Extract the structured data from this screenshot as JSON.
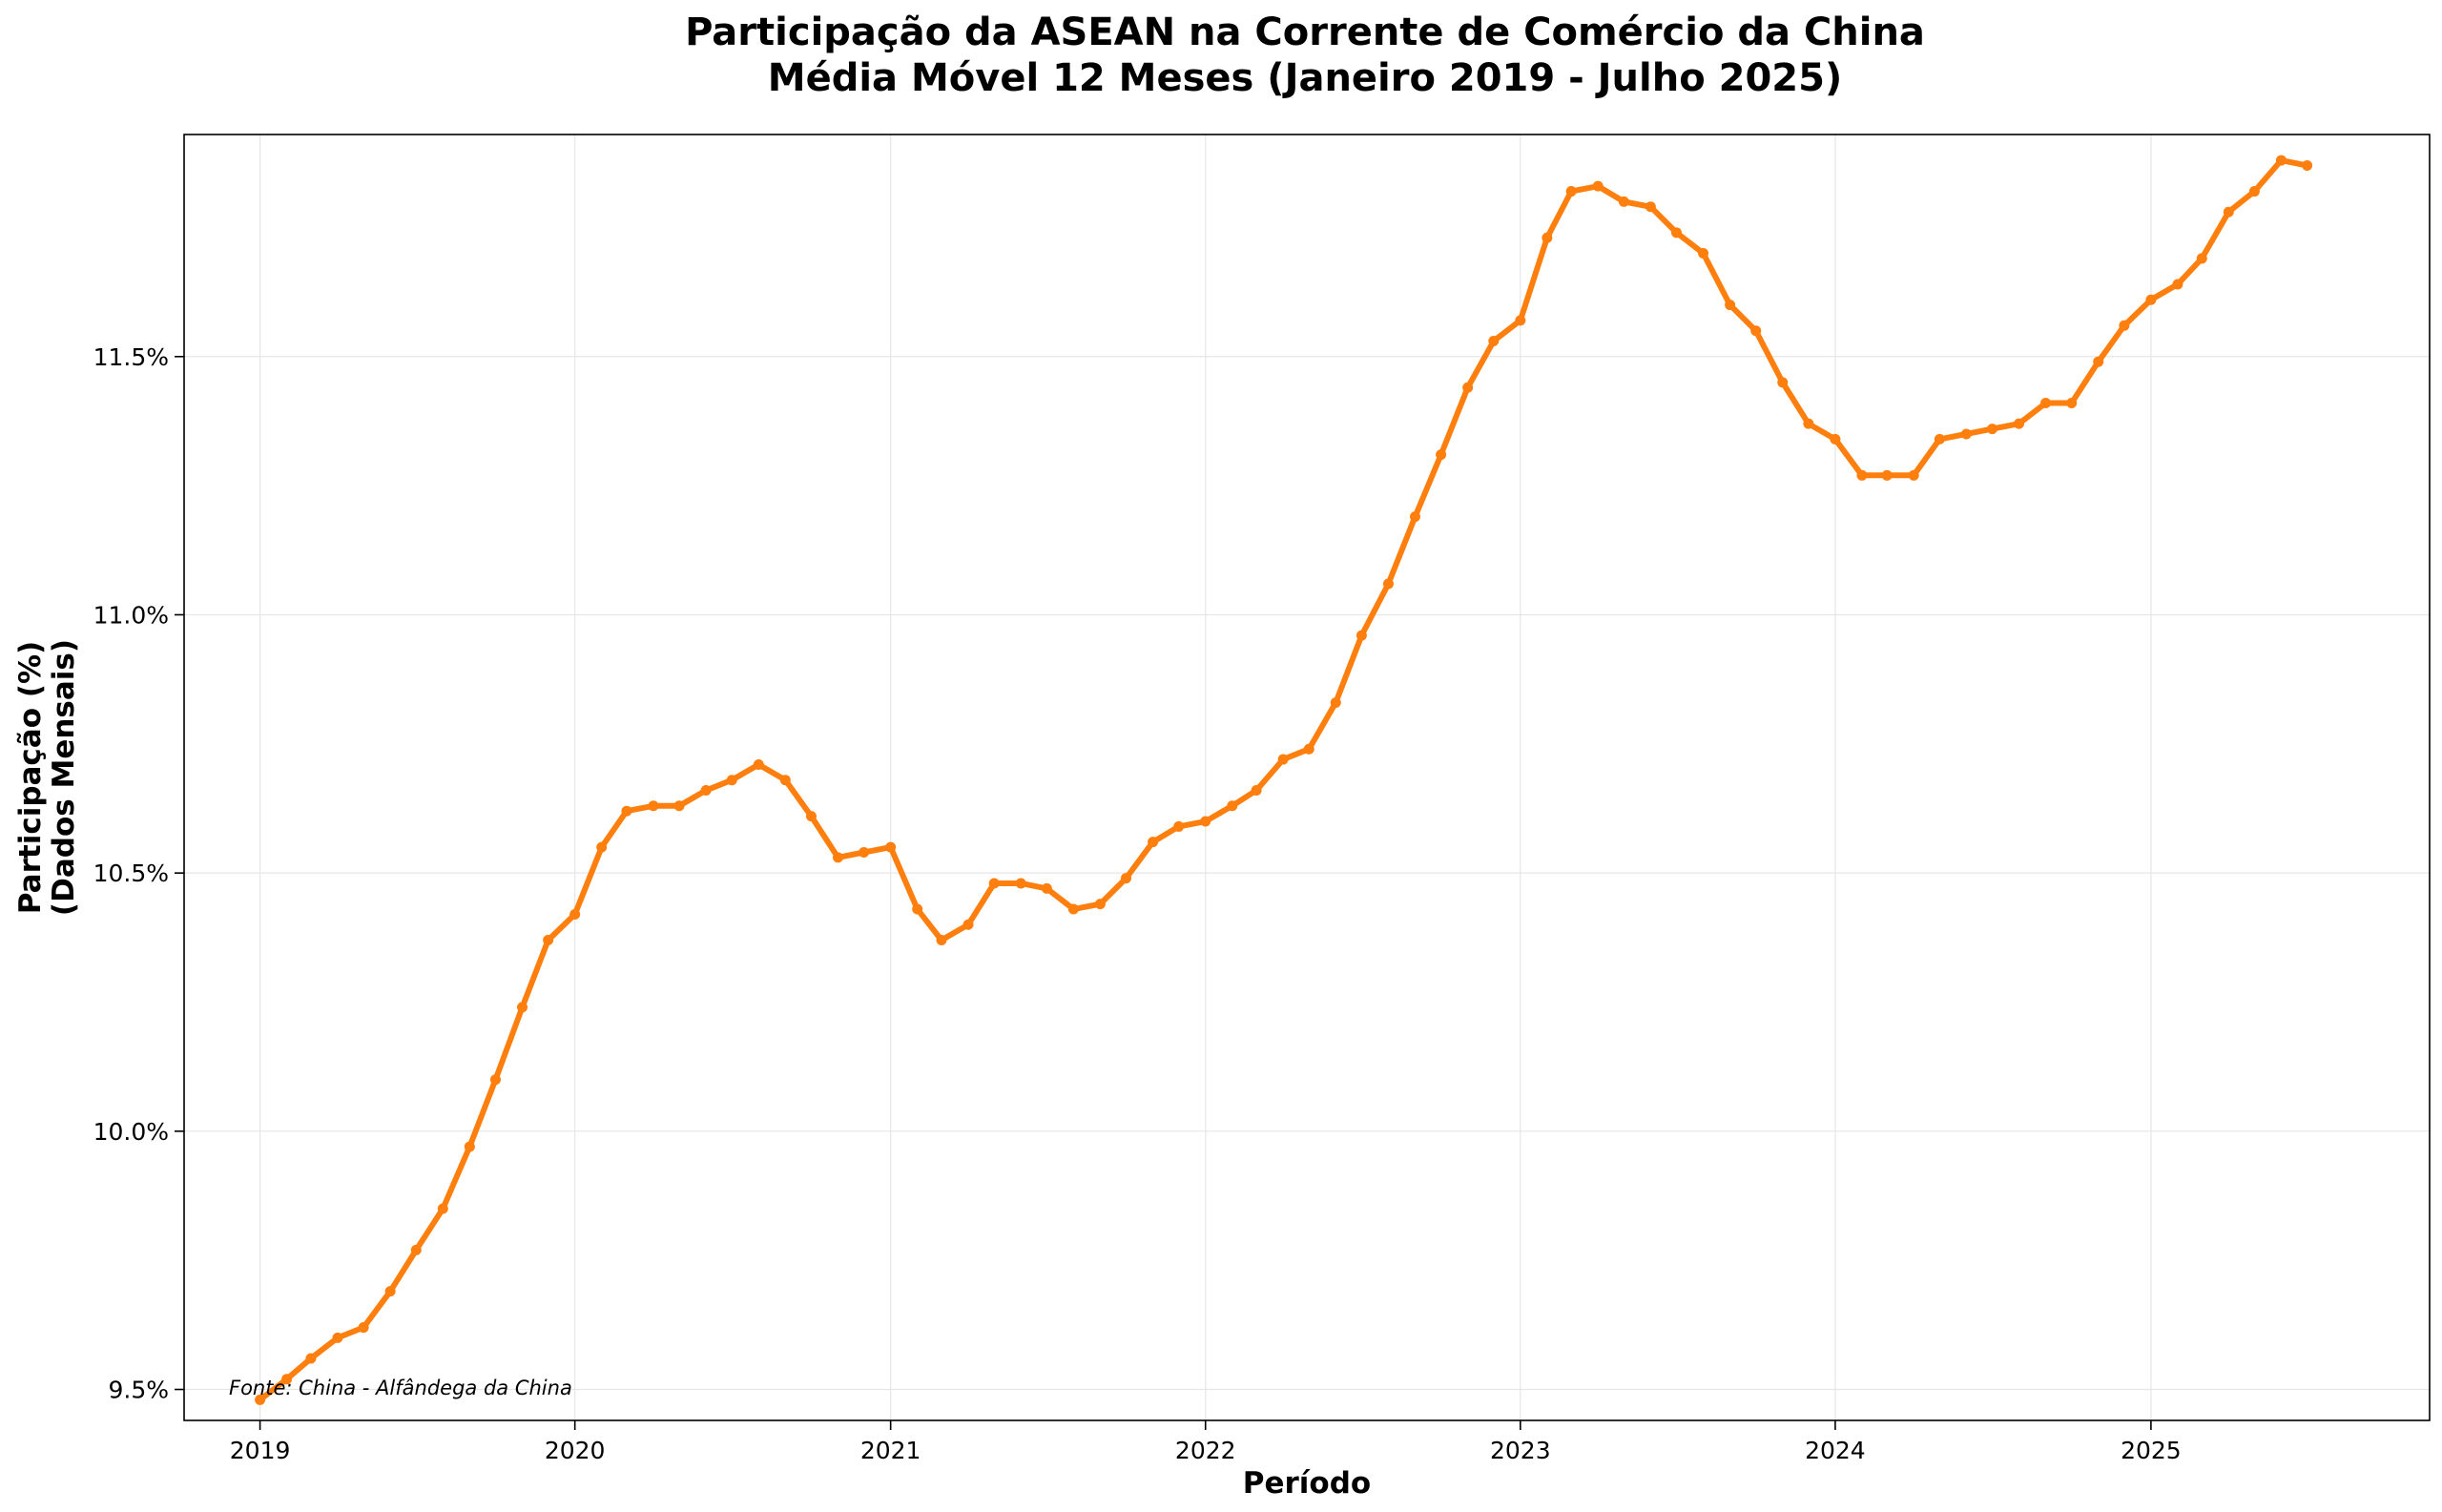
{
  "chart_data": {
    "type": "line",
    "title": "Participação da ASEAN na Corrente de Comércio da China",
    "subtitle": "Média Móvel 12 Meses (Janeiro 2019 - Julho 2025)",
    "xlabel": "Período",
    "ylabel_line1": "Participação (%)",
    "ylabel_line2": "(Dados Mensais)",
    "source": "Fonte: China - Alfândega da China",
    "xlim": [
      "2018-10-05",
      "2025-11-20"
    ],
    "ylim": [
      9.44,
      11.93
    ],
    "x_ticks": [
      {
        "date": "2019-01-01",
        "label": "2019"
      },
      {
        "date": "2020-01-01",
        "label": "2020"
      },
      {
        "date": "2021-01-01",
        "label": "2021"
      },
      {
        "date": "2022-01-01",
        "label": "2022"
      },
      {
        "date": "2023-01-01",
        "label": "2023"
      },
      {
        "date": "2024-01-01",
        "label": "2024"
      },
      {
        "date": "2025-01-01",
        "label": "2025"
      }
    ],
    "y_ticks": [
      {
        "value": 9.5,
        "label": "9.5%"
      },
      {
        "value": 10.0,
        "label": "10.0%"
      },
      {
        "value": 10.5,
        "label": "10.5%"
      },
      {
        "value": 11.0,
        "label": "11.0%"
      },
      {
        "value": 11.5,
        "label": "11.5%"
      }
    ],
    "grid": true,
    "line_color": "#ff7f0e",
    "series": [
      {
        "values": [
          [
            "2019-01-01",
            9.48
          ],
          [
            "2019-02-01",
            9.52
          ],
          [
            "2019-03-01",
            9.56
          ],
          [
            "2019-04-01",
            9.6
          ],
          [
            "2019-05-01",
            9.62
          ],
          [
            "2019-06-01",
            9.69
          ],
          [
            "2019-07-01",
            9.77
          ],
          [
            "2019-08-01",
            9.85
          ],
          [
            "2019-09-01",
            9.97
          ],
          [
            "2019-10-01",
            10.1
          ],
          [
            "2019-11-01",
            10.24
          ],
          [
            "2019-12-01",
            10.37
          ],
          [
            "2020-01-01",
            10.42
          ],
          [
            "2020-02-01",
            10.55
          ],
          [
            "2020-03-01",
            10.62
          ],
          [
            "2020-04-01",
            10.63
          ],
          [
            "2020-05-01",
            10.63
          ],
          [
            "2020-06-01",
            10.66
          ],
          [
            "2020-07-01",
            10.68
          ],
          [
            "2020-08-01",
            10.71
          ],
          [
            "2020-09-01",
            10.68
          ],
          [
            "2020-10-01",
            10.61
          ],
          [
            "2020-11-01",
            10.53
          ],
          [
            "2020-12-01",
            10.54
          ],
          [
            "2021-01-01",
            10.55
          ],
          [
            "2021-02-01",
            10.43
          ],
          [
            "2021-03-01",
            10.37
          ],
          [
            "2021-04-01",
            10.4
          ],
          [
            "2021-05-01",
            10.48
          ],
          [
            "2021-06-01",
            10.48
          ],
          [
            "2021-07-01",
            10.47
          ],
          [
            "2021-08-01",
            10.43
          ],
          [
            "2021-09-01",
            10.44
          ],
          [
            "2021-10-01",
            10.49
          ],
          [
            "2021-11-01",
            10.56
          ],
          [
            "2021-12-01",
            10.59
          ],
          [
            "2022-01-01",
            10.6
          ],
          [
            "2022-02-01",
            10.63
          ],
          [
            "2022-03-01",
            10.66
          ],
          [
            "2022-04-01",
            10.72
          ],
          [
            "2022-05-01",
            10.74
          ],
          [
            "2022-06-01",
            10.83
          ],
          [
            "2022-07-01",
            10.96
          ],
          [
            "2022-08-01",
            11.06
          ],
          [
            "2022-09-01",
            11.19
          ],
          [
            "2022-10-01",
            11.31
          ],
          [
            "2022-11-01",
            11.44
          ],
          [
            "2022-12-01",
            11.53
          ],
          [
            "2023-01-01",
            11.57
          ],
          [
            "2023-02-01",
            11.73
          ],
          [
            "2023-03-01",
            11.82
          ],
          [
            "2023-04-01",
            11.83
          ],
          [
            "2023-05-01",
            11.8
          ],
          [
            "2023-06-01",
            11.79
          ],
          [
            "2023-07-01",
            11.74
          ],
          [
            "2023-08-01",
            11.7
          ],
          [
            "2023-09-01",
            11.6
          ],
          [
            "2023-10-01",
            11.55
          ],
          [
            "2023-11-01",
            11.45
          ],
          [
            "2023-12-01",
            11.37
          ],
          [
            "2024-01-01",
            11.34
          ],
          [
            "2024-02-01",
            11.27
          ],
          [
            "2024-03-01",
            11.27
          ],
          [
            "2024-04-01",
            11.27
          ],
          [
            "2024-05-01",
            11.34
          ],
          [
            "2024-06-01",
            11.35
          ],
          [
            "2024-07-01",
            11.36
          ],
          [
            "2024-08-01",
            11.37
          ],
          [
            "2024-09-01",
            11.41
          ],
          [
            "2024-10-01",
            11.41
          ],
          [
            "2024-11-01",
            11.49
          ],
          [
            "2024-12-01",
            11.56
          ],
          [
            "2025-01-01",
            11.61
          ],
          [
            "2025-02-01",
            11.64
          ],
          [
            "2025-03-01",
            11.69
          ],
          [
            "2025-04-01",
            11.78
          ],
          [
            "2025-05-01",
            11.82
          ],
          [
            "2025-06-01",
            11.88
          ],
          [
            "2025-07-01",
            11.87
          ]
        ]
      }
    ]
  }
}
